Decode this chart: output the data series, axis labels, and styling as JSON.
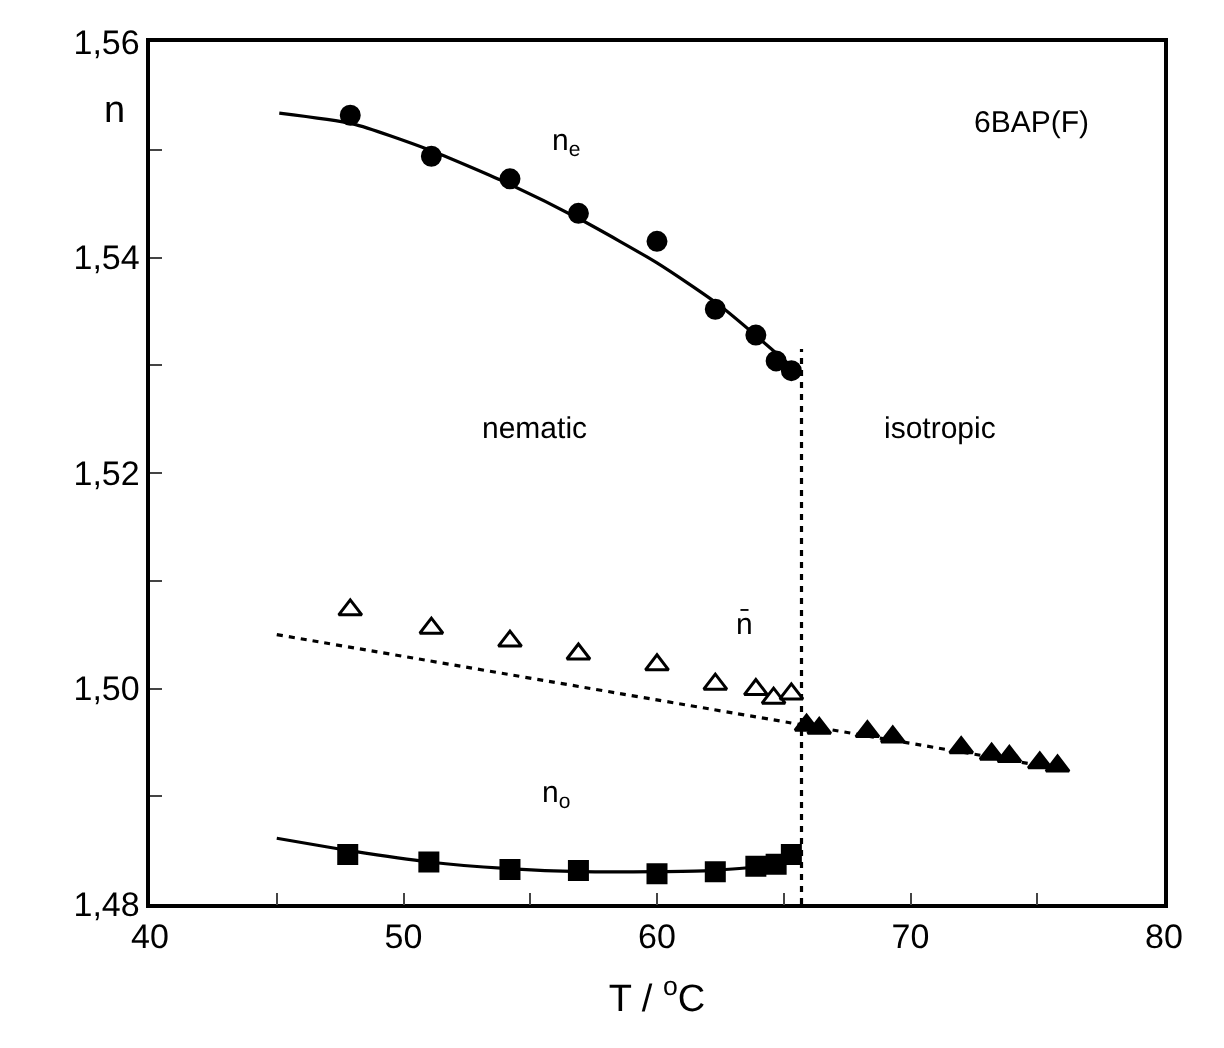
{
  "chart_data": {
    "type": "scatter",
    "xlabel": "T / $^{o}$C",
    "ylabel": "n",
    "xlim": [
      40,
      80
    ],
    "xticks": [
      40,
      {
        "value": 45,
        "label": null
      },
      50,
      {
        "value": 55,
        "label": null
      },
      60,
      {
        "value": 65,
        "label": null
      },
      70,
      {
        "value": 75,
        "label": null
      },
      80
    ],
    "ylim": [
      1.48,
      1.56
    ],
    "yticks": [
      {
        "value": 1.48,
        "label": "1,48"
      },
      {
        "value": 1.49,
        "label": null
      },
      {
        "value": 1.5,
        "label": "1,50"
      },
      {
        "value": 1.51,
        "label": null
      },
      {
        "value": 1.52,
        "label": "1,52"
      },
      {
        "value": 1.53,
        "label": null
      },
      {
        "value": 1.54,
        "label": "1,54"
      },
      {
        "value": 1.55,
        "label": null
      },
      {
        "value": 1.56,
        "label": "1,56"
      }
    ],
    "legend": false,
    "series": [
      {
        "type": "line",
        "color": "#000000",
        "line_style": "solid",
        "x": [
          45.1,
          48,
          51,
          54,
          57,
          60,
          62.5,
          65.5
        ],
        "values": [
          1.5534,
          1.5524,
          1.55,
          1.547,
          1.5435,
          1.5395,
          1.5355,
          1.5295
        ]
      },
      {
        "type": "line",
        "color": "#000000",
        "line_style": "solid",
        "x": [
          45,
          48,
          51,
          54,
          57,
          60,
          62,
          64,
          65.5
        ],
        "values": [
          1.4861,
          1.4849,
          1.4839,
          1.4833,
          1.483,
          1.483,
          1.4831,
          1.4835,
          1.4845
        ]
      },
      {
        "type": "line",
        "color": "#000000",
        "line_style": "dotted",
        "x": [
          45,
          65.8,
          76
        ],
        "values": [
          1.505,
          1.4966,
          1.4925
        ]
      },
      {
        "type": "line",
        "color": "#000000",
        "line_style": "dotted",
        "x": [
          65.7,
          65.7
        ],
        "values": [
          1.48,
          1.5315
        ]
      },
      {
        "color": "#000000",
        "marker": "circle",
        "x": [
          47.9,
          51.1,
          54.2,
          56.9,
          60.0,
          62.3,
          63.9,
          64.7,
          65.3
        ],
        "values": [
          1.5532,
          1.5494,
          1.5473,
          1.5441,
          1.5415,
          1.5352,
          1.5328,
          1.5304,
          1.5295
        ]
      },
      {
        "color": "#000000",
        "marker": "square",
        "x": [
          47.8,
          51.0,
          54.2,
          56.9,
          60.0,
          62.3,
          63.9,
          64.7,
          65.3
        ],
        "values": [
          1.4846,
          1.4839,
          1.4832,
          1.4831,
          1.4828,
          1.483,
          1.4835,
          1.4837,
          1.4846
        ]
      },
      {
        "color": "#000000",
        "marker": "triangle-open",
        "x": [
          47.9,
          51.1,
          54.2,
          56.9,
          60.0,
          62.3,
          63.9,
          64.6,
          65.3
        ],
        "values": [
          1.5073,
          1.5056,
          1.5044,
          1.5032,
          1.5022,
          1.5004,
          1.4999,
          1.4991,
          1.4995
        ]
      },
      {
        "color": "#000000",
        "marker": "triangle",
        "x": [
          65.9,
          66.4,
          68.3,
          69.3,
          72.0,
          73.2,
          73.9,
          75.1,
          75.8
        ],
        "values": [
          1.4966,
          1.4963,
          1.496,
          1.4955,
          1.4945,
          1.4939,
          1.4937,
          1.4931,
          1.4928
        ]
      }
    ],
    "annotations": [
      "n$_{e}$",
      "n$_{o}$",
      "n̄",
      "6BAP(F)",
      "nematic",
      "isotropic"
    ]
  }
}
